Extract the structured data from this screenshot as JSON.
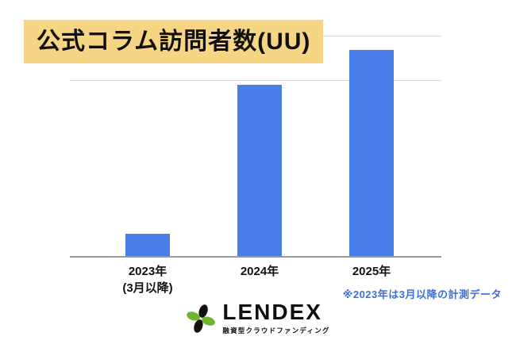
{
  "title": "公式コラム訪問者数(UU)",
  "note": "※2023年は3月以降の計測データ",
  "logo": {
    "name": "LENDEX",
    "tagline": "融資型クラウドファンディング"
  },
  "colors": {
    "bar": "#4A7DE8",
    "title_highlight": "#F6D584",
    "note_text": "#3D6FD9",
    "logo_green": "#6CB52D",
    "logo_black": "#111111",
    "gridline": "#D9D9D9",
    "axis": "#9A9A9A"
  },
  "chart_data": {
    "type": "bar",
    "title": "公式コラム訪問者数(UU)",
    "categories": [
      "2023年 (3月以降)",
      "2024年",
      "2025年"
    ],
    "values": [
      10,
      78,
      94
    ],
    "bars": [
      {
        "label": "2023年",
        "sublabel": "(3月以降)",
        "value_pct": 10
      },
      {
        "label": "2024年",
        "sublabel": "",
        "value_pct": 78
      },
      {
        "label": "2025年",
        "sublabel": "",
        "value_pct": 94
      }
    ],
    "xlabel": "",
    "ylabel": "",
    "ylim": [
      0,
      100
    ],
    "value_scale": "relative bar heights in % of plot height; y-axis values are not labeled in the image",
    "legend": "none",
    "grid": "horizontal gridlines, light gray",
    "annotation": "※2023年は3月以降の計測データ",
    "bar_color": "#4A7DE8"
  }
}
